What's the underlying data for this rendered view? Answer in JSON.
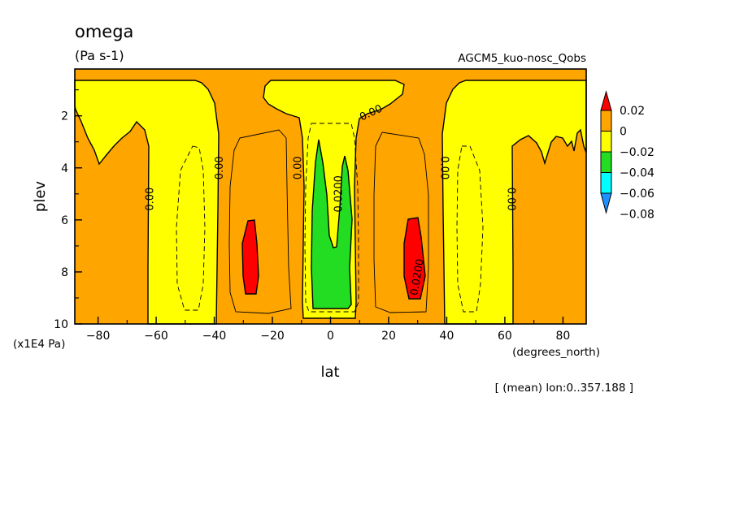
{
  "chart_data": {
    "type": "heatmap",
    "title": "omega",
    "units": "(Pa s-1)",
    "subtitle": "AGCM5_kuo-nosc_Qobs",
    "xlabel": "lat",
    "xunits": "(degrees_north)",
    "ylabel": "plev",
    "yunits": "(x1E4 Pa)",
    "annotation": "[ (mean) lon:0..357.188 ]",
    "xlim": [
      -88,
      88
    ],
    "ylim": [
      10,
      0.2
    ],
    "x_ticks": [
      -80,
      -60,
      -40,
      -20,
      0,
      20,
      40,
      60,
      80
    ],
    "y_ticks": [
      2,
      4,
      6,
      8,
      10
    ],
    "colorbar": {
      "labels": [
        "0.02",
        "0",
        "−0.02",
        "−0.04",
        "−0.06",
        "−0.08"
      ],
      "colors": [
        "#ff0000",
        "#ffa500",
        "#ffff00",
        "#22dd22",
        "#00ffff",
        "#1e90ff"
      ]
    },
    "contour_labels": [
      {
        "text": "0.00",
        "lat": -62,
        "plev": 5.2,
        "rotate": -90
      },
      {
        "text": "0.00",
        "lat": -38,
        "plev": 4.0,
        "rotate": -90
      },
      {
        "text": "0.00",
        "lat": -11,
        "plev": 4.0,
        "rotate": -90
      },
      {
        "text": "0.00",
        "lat": 14,
        "plev": 1.9,
        "rotate": -25
      },
      {
        "text": "0.00",
        "lat": 39,
        "plev": 4.0,
        "rotate": 90
      },
      {
        "text": "0.00",
        "lat": 62,
        "plev": 5.2,
        "rotate": 90
      },
      {
        "text": "0.0200",
        "lat": 3,
        "plev": 5.0,
        "rotate": -90
      },
      {
        "text": "0.0200",
        "lat": 30,
        "plev": 8.2,
        "rotate": -80
      }
    ]
  }
}
